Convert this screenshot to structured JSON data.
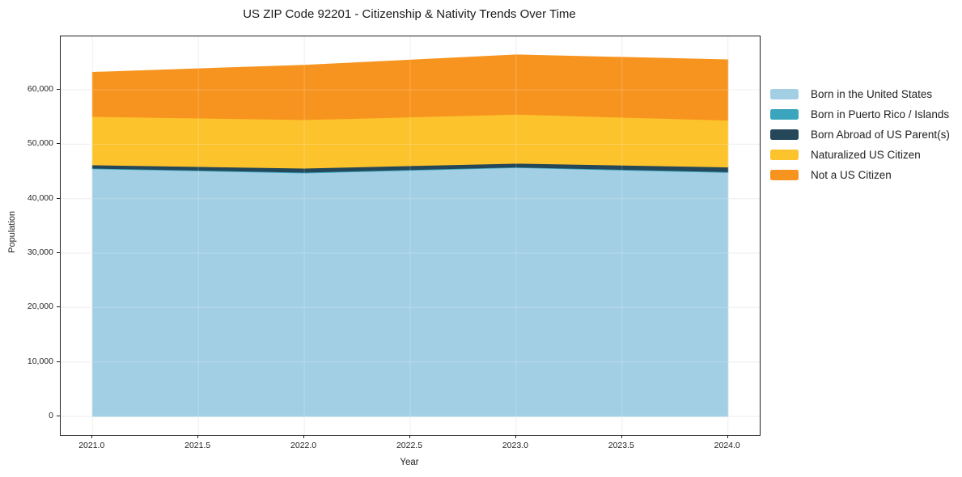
{
  "chart_data": {
    "type": "area",
    "stacked": true,
    "title": "US ZIP Code 92201 - Citizenship & Nativity Trends Over Time",
    "xlabel": "Year",
    "ylabel": "Population",
    "grid": true,
    "legend_position": "right-outside",
    "x": [
      2021,
      2022,
      2023,
      2024
    ],
    "xlim": [
      2020.85,
      2024.15
    ],
    "ylim": [
      -3400,
      69800
    ],
    "xticks": [
      {
        "label": "2021.0",
        "value": 2021.0
      },
      {
        "label": "2021.5",
        "value": 2021.5
      },
      {
        "label": "2022.0",
        "value": 2022.0
      },
      {
        "label": "2022.5",
        "value": 2022.5
      },
      {
        "label": "2023.0",
        "value": 2023.0
      },
      {
        "label": "2023.5",
        "value": 2023.5
      },
      {
        "label": "2024.0",
        "value": 2024.0
      }
    ],
    "yticks": [
      {
        "label": "0",
        "value": 0
      },
      {
        "label": "10,000",
        "value": 10000
      },
      {
        "label": "20,000",
        "value": 20000
      },
      {
        "label": "30,000",
        "value": 30000
      },
      {
        "label": "40,000",
        "value": 40000
      },
      {
        "label": "50,000",
        "value": 50000
      },
      {
        "label": "60,000",
        "value": 60000
      }
    ],
    "series": [
      {
        "name": "Born in the United States",
        "color": "#a3cfe4",
        "values": [
          45500,
          44700,
          45700,
          44800
        ]
      },
      {
        "name": "Born in Puerto Rico / Islands",
        "color": "#3aa5bd",
        "values": [
          100,
          150,
          100,
          150
        ]
      },
      {
        "name": "Born Abroad of US Parent(s)",
        "color": "#24475a",
        "values": [
          600,
          750,
          700,
          850
        ]
      },
      {
        "name": "Naturalized US Citizen",
        "color": "#fdc32d",
        "values": [
          8900,
          8900,
          9000,
          8600
        ]
      },
      {
        "name": "Not a US Citizen",
        "color": "#f7941f",
        "values": [
          8100,
          10000,
          10900,
          11100
        ]
      }
    ],
    "stack_totals": [
      63200,
      64500,
      66400,
      65500
    ],
    "grid_color": "#ebebeb",
    "axis_color": "#1f1f1f"
  }
}
